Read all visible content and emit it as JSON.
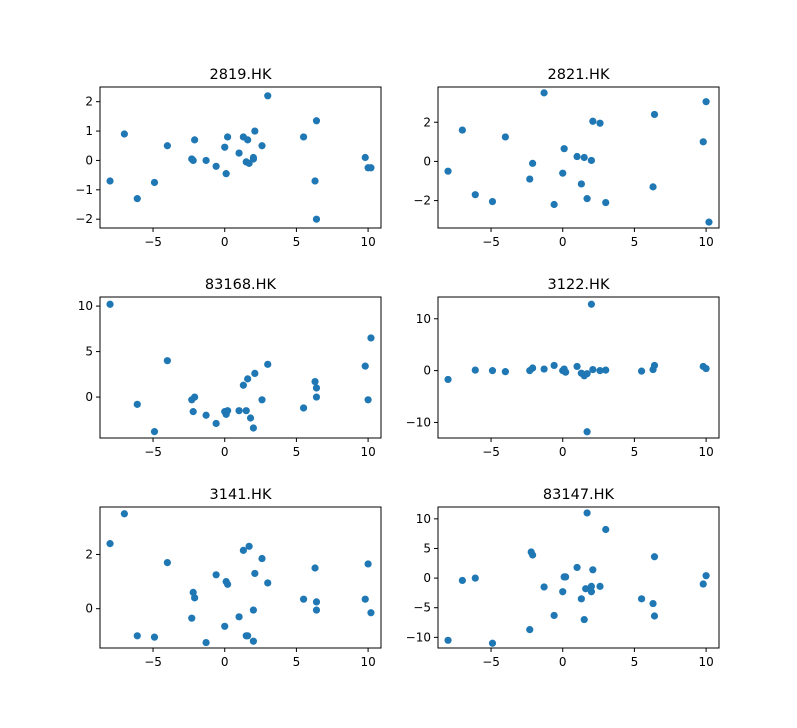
{
  "chart_data": [
    {
      "type": "scatter",
      "title": "2819.HK",
      "color": "#1f77b4",
      "xlim": [
        -8.7,
        10.9
      ],
      "ylim": [
        -2.3,
        2.5
      ],
      "xticks": [
        -5,
        0,
        5,
        10
      ],
      "yticks": [
        -2,
        -1,
        0,
        1,
        2
      ],
      "xtick_labels": [
        "−5",
        "0",
        "5",
        "10"
      ],
      "ytick_labels": [
        "−2",
        "−1",
        "0",
        "1",
        "2"
      ],
      "x": [
        -8.0,
        -7.0,
        -6.1,
        -4.9,
        -4.0,
        -2.3,
        -2.2,
        -2.1,
        -1.3,
        -0.6,
        0.0,
        0.1,
        0.2,
        1.0,
        1.3,
        1.5,
        1.7,
        2.0,
        1.6,
        2.1,
        2.6,
        3.0,
        5.5,
        6.3,
        6.4,
        6.4,
        9.8,
        10.0,
        10.2,
        2.0
      ],
      "y": [
        -0.7,
        0.9,
        -1.3,
        -0.75,
        0.5,
        0.05,
        0.0,
        0.7,
        0.0,
        -0.2,
        0.45,
        -0.45,
        0.8,
        0.25,
        0.8,
        -0.05,
        -0.1,
        0.05,
        0.7,
        1.0,
        0.5,
        2.2,
        0.8,
        -0.7,
        -2.0,
        1.35,
        0.1,
        -0.25,
        -0.25,
        0.1
      ]
    },
    {
      "type": "scatter",
      "title": "2821.HK",
      "color": "#1f77b4",
      "xlim": [
        -8.7,
        10.9
      ],
      "ylim": [
        -3.4,
        3.8
      ],
      "xticks": [
        -5,
        0,
        5,
        10
      ],
      "yticks": [
        -2,
        0,
        2
      ],
      "xtick_labels": [
        "−5",
        "0",
        "5",
        "10"
      ],
      "ytick_labels": [
        "−2",
        "0",
        "2"
      ],
      "x": [
        -8.0,
        -7.0,
        -6.1,
        -4.9,
        -4.0,
        -2.3,
        -2.1,
        -1.3,
        -0.6,
        0.0,
        0.1,
        1.0,
        1.3,
        1.5,
        1.7,
        2.0,
        2.1,
        2.6,
        3.0,
        6.3,
        6.4,
        9.8,
        10.0,
        10.2
      ],
      "y": [
        -0.5,
        1.6,
        -1.7,
        -2.05,
        1.25,
        -0.9,
        -0.1,
        3.5,
        -2.2,
        -0.6,
        0.65,
        0.25,
        -1.15,
        0.2,
        -1.9,
        0.05,
        2.05,
        1.95,
        -2.1,
        -1.3,
        2.4,
        1.0,
        3.05,
        -3.1
      ]
    },
    {
      "type": "scatter",
      "title": "83168.HK",
      "color": "#1f77b4",
      "xlim": [
        -8.7,
        10.9
      ],
      "ylim": [
        -4.5,
        11.0
      ],
      "xticks": [
        -5,
        0,
        5,
        10
      ],
      "yticks": [
        0,
        5,
        10
      ],
      "xtick_labels": [
        "−5",
        "0",
        "5",
        "10"
      ],
      "ytick_labels": [
        "0",
        "5",
        "10"
      ],
      "x": [
        -8.0,
        -6.1,
        -4.9,
        -4.0,
        -2.3,
        -2.2,
        -2.1,
        -1.3,
        -0.6,
        0.0,
        0.1,
        0.2,
        1.0,
        1.3,
        1.5,
        1.6,
        1.8,
        2.0,
        2.1,
        2.6,
        3.0,
        5.5,
        6.3,
        6.4,
        6.4,
        9.8,
        10.0,
        10.2
      ],
      "y": [
        10.2,
        -0.8,
        -3.8,
        4.0,
        -0.3,
        -1.6,
        0.0,
        -2.0,
        -2.9,
        -1.6,
        -1.9,
        -1.5,
        -1.5,
        1.3,
        -1.5,
        2.0,
        -2.3,
        -3.4,
        2.6,
        -0.3,
        3.6,
        -1.2,
        1.7,
        1.0,
        0.0,
        3.4,
        -0.3,
        6.5
      ]
    },
    {
      "type": "scatter",
      "title": "3122.HK",
      "color": "#1f77b4",
      "xlim": [
        -8.7,
        10.9
      ],
      "ylim": [
        -13.0,
        14.2
      ],
      "xticks": [
        -5,
        0,
        5,
        10
      ],
      "yticks": [
        -10,
        0,
        10
      ],
      "xtick_labels": [
        "−5",
        "0",
        "5",
        "10"
      ],
      "ytick_labels": [
        "−10",
        "0",
        "10"
      ],
      "x": [
        -8.0,
        -6.1,
        -4.9,
        -4.0,
        -2.3,
        -2.1,
        -1.3,
        -0.6,
        0.0,
        0.1,
        0.2,
        1.0,
        1.3,
        1.5,
        1.7,
        2.0,
        2.1,
        2.6,
        3.0,
        5.5,
        6.3,
        6.4,
        9.8,
        10.0,
        1.7
      ],
      "y": [
        -1.7,
        0.1,
        0.0,
        -0.2,
        0.0,
        0.5,
        0.3,
        1.0,
        0.0,
        0.3,
        -0.3,
        0.8,
        -0.5,
        -1.0,
        -11.8,
        12.8,
        0.2,
        0.0,
        0.1,
        -0.1,
        0.2,
        1.0,
        0.8,
        0.4,
        -0.6
      ]
    },
    {
      "type": "scatter",
      "title": "3141.HK",
      "color": "#1f77b4",
      "xlim": [
        -8.7,
        10.9
      ],
      "ylim": [
        -1.45,
        3.75
      ],
      "xticks": [
        -5,
        0,
        5,
        10
      ],
      "yticks": [
        0,
        2
      ],
      "xtick_labels": [
        "−5",
        "0",
        "5",
        "10"
      ],
      "ytick_labels": [
        "0",
        "2"
      ],
      "x": [
        -8.0,
        -7.0,
        -6.1,
        -4.9,
        -4.0,
        -2.3,
        -2.2,
        -2.1,
        -1.3,
        -0.6,
        0.0,
        0.1,
        0.2,
        1.0,
        1.3,
        1.5,
        1.7,
        1.6,
        2.0,
        2.0,
        2.1,
        2.6,
        3.0,
        5.5,
        6.3,
        6.4,
        6.4,
        9.8,
        10.0,
        10.2
      ],
      "y": [
        2.4,
        3.5,
        -1.0,
        -1.05,
        1.7,
        -0.35,
        0.6,
        0.4,
        -1.25,
        1.25,
        -0.65,
        1.0,
        0.9,
        -0.3,
        2.15,
        -1.0,
        2.3,
        -1.0,
        -0.05,
        -1.2,
        1.3,
        1.85,
        0.95,
        0.35,
        1.5,
        0.25,
        -0.05,
        0.35,
        1.65,
        -0.15
      ]
    },
    {
      "type": "scatter",
      "title": "83147.HK",
      "color": "#1f77b4",
      "xlim": [
        -8.7,
        10.9
      ],
      "ylim": [
        -11.8,
        12.0
      ],
      "xticks": [
        -5,
        0,
        5,
        10
      ],
      "yticks": [
        -10,
        -5,
        0,
        5,
        10
      ],
      "xtick_labels": [
        "−5",
        "0",
        "5",
        "10"
      ],
      "ytick_labels": [
        "−10",
        "−5",
        "0",
        "5",
        "10"
      ],
      "x": [
        -8.0,
        -7.0,
        -6.1,
        -4.9,
        -4.0,
        -2.3,
        -2.2,
        -2.1,
        -1.3,
        -0.6,
        0.0,
        0.1,
        0.2,
        1.0,
        1.3,
        1.5,
        1.7,
        1.6,
        2.0,
        2.1,
        2.6,
        3.0,
        5.5,
        6.3,
        6.4,
        6.4,
        9.8,
        10.0,
        10.2,
        2.0
      ],
      "y": [
        -10.5,
        -0.4,
        0.0,
        -11.0,
        null,
        -8.7,
        4.4,
        3.9,
        -1.5,
        -6.3,
        -2.3,
        0.2,
        0.2,
        1.8,
        -3.5,
        -7.0,
        11.0,
        -1.8,
        -2.3,
        1.4,
        -1.4,
        8.2,
        -3.5,
        -4.3,
        3.6,
        -6.4,
        -1.0,
        0.4,
        null,
        -1.4
      ]
    }
  ]
}
